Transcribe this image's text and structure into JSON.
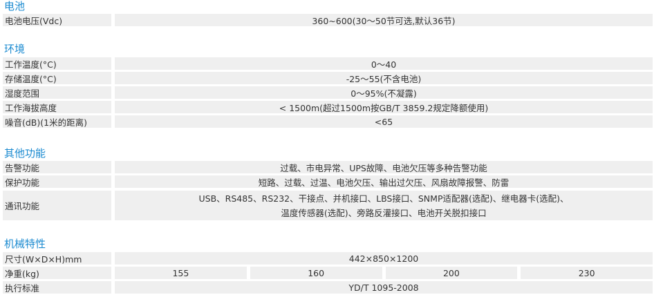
{
  "sections": [
    {
      "title": "电池",
      "rows": [
        {
          "label": "电池电压(Vdc)",
          "value": "360~600(30～50节可选,默认36节)"
        }
      ]
    },
    {
      "title": "环境",
      "rows": [
        {
          "label": "工作温度(°C)",
          "value": "0～40"
        },
        {
          "label": "存储温度(°C)",
          "value": "-25～55(不含电池)"
        },
        {
          "label": "湿度范围",
          "value": "0～95%(不凝露)"
        },
        {
          "label": "工作海拔高度",
          "value": "< 1500m(超过1500m按GB/T 3859.2规定降额使用)"
        },
        {
          "label": "噪音(dB)(1米的距离)",
          "value": "<65"
        }
      ]
    },
    {
      "title": "其他功能",
      "rows": [
        {
          "label": "告警功能",
          "value": "过载、市电异常、UPS故障、电池欠压等多种告警功能"
        },
        {
          "label": "保护功能",
          "value": "短路、过载、过温、电池欠压、输出过欠压、风扇故障报警、防雷"
        },
        {
          "label": "通讯功能",
          "value": "USB、RS485、RS232、干接点、并机接口、LBS接口、SNMP适配器(选配)、继电器卡(选配)、",
          "value2": "温度传感器(选配)、旁路反灌接口、电池开关脱扣接口"
        }
      ]
    },
    {
      "title": "机械特性",
      "rows": [
        {
          "label": "尺寸(W×D×H)mm",
          "value": "442×850×1200"
        },
        {
          "label": "净重(kg)",
          "values": [
            "155",
            "160",
            "200",
            "230"
          ]
        },
        {
          "label": "执行标准",
          "value": "YD/T 1095-2008"
        }
      ]
    }
  ]
}
